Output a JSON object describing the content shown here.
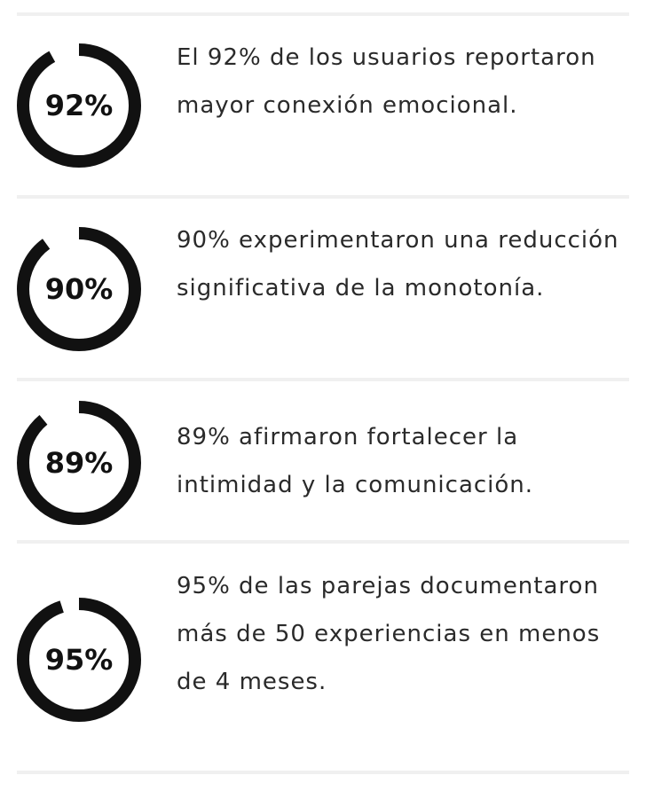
{
  "colors": {
    "ring": "#111111",
    "text": "#2a2a2a",
    "divider": "#f0f0f0"
  },
  "stats": [
    {
      "value_label": "92%",
      "percent": 92,
      "text": "El 92% de los usuarios reportaron mayor conexión emocional."
    },
    {
      "value_label": "90%",
      "percent": 90,
      "text": "90% experimentaron una reducción significativa de la monotonía."
    },
    {
      "value_label": "89%",
      "percent": 89,
      "text": "89% afirmaron fortalecer la intimidad y la comunicación."
    },
    {
      "value_label": "95%",
      "percent": 95,
      "text": "95% de las parejas documentaron más de 50 experiencias en menos de 4 meses."
    }
  ]
}
